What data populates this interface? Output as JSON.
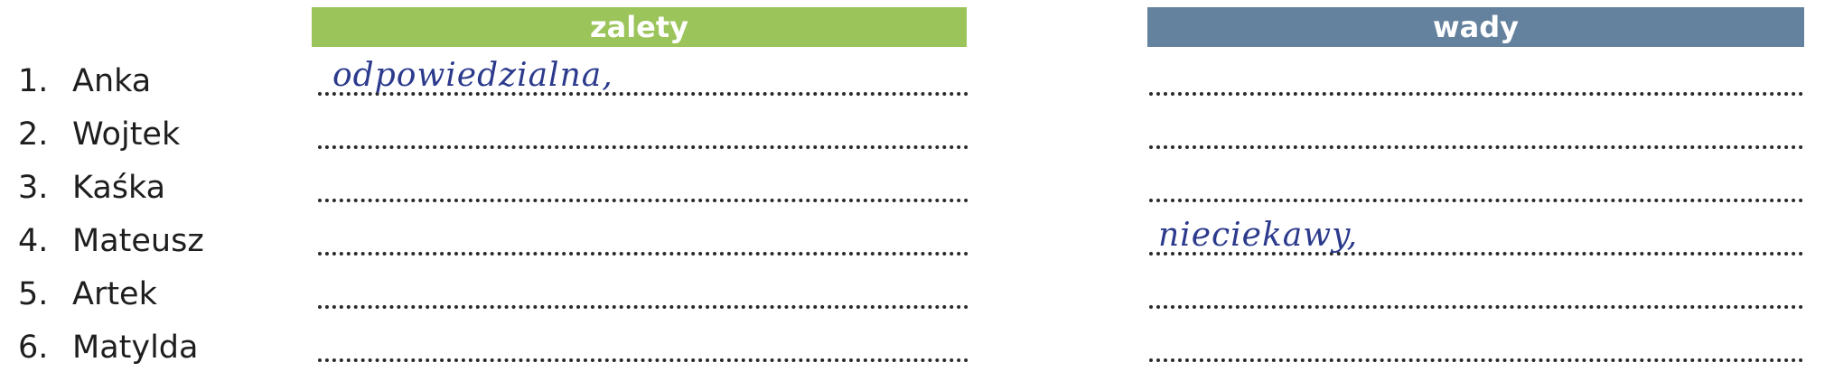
{
  "headers": {
    "zalety": "zalety",
    "wady": "wady"
  },
  "rows": [
    {
      "number": "1.",
      "name": "Anka",
      "zalety": "odpowiedzialna,",
      "wady": ""
    },
    {
      "number": "2.",
      "name": "Wojtek",
      "zalety": "",
      "wady": ""
    },
    {
      "number": "3.",
      "name": "Kaśka",
      "zalety": "",
      "wady": ""
    },
    {
      "number": "4.",
      "name": "Mateusz",
      "zalety": "",
      "wady": "nieciekawy,"
    },
    {
      "number": "5.",
      "name": "Artek",
      "zalety": "",
      "wady": ""
    },
    {
      "number": "6.",
      "name": "Matylda",
      "zalety": "",
      "wady": ""
    }
  ],
  "colors": {
    "zalety_header": "#9bc45a",
    "wady_header": "#64829e",
    "handwriting": "#2b3a8c"
  }
}
